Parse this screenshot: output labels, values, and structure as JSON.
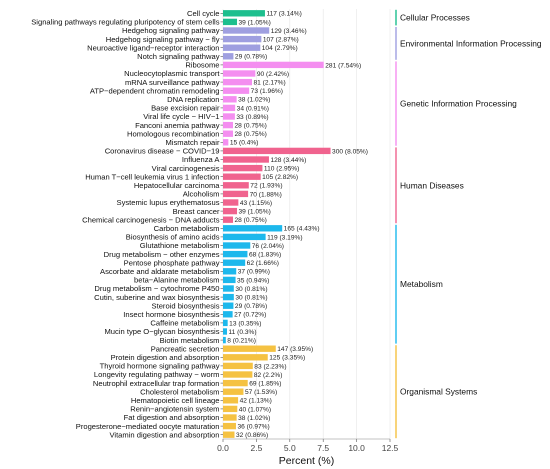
{
  "chart_data": {
    "type": "bar",
    "orientation": "horizontal",
    "xlabel": "Percent (%)",
    "xlim": [
      0,
      12.5
    ],
    "xticks": [
      "0.0",
      "2.5",
      "5.0",
      "7.5",
      "10.0",
      "12.5"
    ],
    "grid": true,
    "groups": [
      {
        "name": "Cellular Processes",
        "color": "#1dbf8e",
        "items": [
          {
            "label": "Cell cycle",
            "count": 117,
            "percent": 3.14,
            "text": "117 (3.14%)"
          },
          {
            "label": "Signaling pathways regulating pluripotency of stem cells",
            "count": 39,
            "percent": 1.05,
            "text": "39 (1.05%)"
          }
        ]
      },
      {
        "name": "Environmental Information Processing",
        "color": "#9f9fe0",
        "items": [
          {
            "label": "Hedgehog signaling pathway",
            "count": 129,
            "percent": 3.46,
            "text": "129 (3.46%)"
          },
          {
            "label": "Hedgehog signaling pathway − fly",
            "count": 107,
            "percent": 2.87,
            "text": "107 (2.87%)"
          },
          {
            "label": "Neuroactive ligand−receptor interaction",
            "count": 104,
            "percent": 2.79,
            "text": "104 (2.79%)"
          },
          {
            "label": "Notch signaling pathway",
            "count": 29,
            "percent": 0.78,
            "text": "29 (0.78%)"
          }
        ]
      },
      {
        "name": "Genetic Information Processing",
        "color": "#f48ef0",
        "items": [
          {
            "label": "Ribosome",
            "count": 281,
            "percent": 7.54,
            "text": "281 (7.54%)"
          },
          {
            "label": "Nucleocytoplasmic transport",
            "count": 90,
            "percent": 2.42,
            "text": "90 (2.42%)"
          },
          {
            "label": "mRNA surveillance pathway",
            "count": 81,
            "percent": 2.17,
            "text": "81 (2.17%)"
          },
          {
            "label": "ATP−dependent chromatin remodeling",
            "count": 73,
            "percent": 1.96,
            "text": "73 (1.96%)"
          },
          {
            "label": "DNA replication",
            "count": 38,
            "percent": 1.02,
            "text": "38 (1.02%)"
          },
          {
            "label": "Base excision repair",
            "count": 34,
            "percent": 0.91,
            "text": "34 (0.91%)"
          },
          {
            "label": "Viral life cycle − HIV−1",
            "count": 33,
            "percent": 0.89,
            "text": "33 (0.89%)"
          },
          {
            "label": "Fanconi anemia pathway",
            "count": 28,
            "percent": 0.75,
            "text": "28 (0.75%)"
          },
          {
            "label": "Homologous recombination",
            "count": 28,
            "percent": 0.75,
            "text": "28 (0.75%)"
          },
          {
            "label": "Mismatch repair",
            "count": 15,
            "percent": 0.4,
            "text": "15 (0.4%)"
          }
        ]
      },
      {
        "name": "Human Diseases",
        "color": "#f0638e",
        "items": [
          {
            "label": "Coronavirus disease − COVID−19",
            "count": 300,
            "percent": 8.05,
            "text": "300 (8.05%)"
          },
          {
            "label": "Influenza A",
            "count": 128,
            "percent": 3.44,
            "text": "128 (3.44%)"
          },
          {
            "label": "Viral carcinogenesis",
            "count": 110,
            "percent": 2.95,
            "text": "110 (2.95%)"
          },
          {
            "label": "Human T−cell leukemia virus 1 infection",
            "count": 105,
            "percent": 2.82,
            "text": "105 (2.82%)"
          },
          {
            "label": "Hepatocellular carcinoma",
            "count": 72,
            "percent": 1.93,
            "text": "72 (1.93%)"
          },
          {
            "label": "Alcoholism",
            "count": 70,
            "percent": 1.88,
            "text": "70 (1.88%)"
          },
          {
            "label": "Systemic lupus erythematosus",
            "count": 43,
            "percent": 1.15,
            "text": "43 (1.15%)"
          },
          {
            "label": "Breast cancer",
            "count": 39,
            "percent": 1.05,
            "text": "39 (1.05%)"
          },
          {
            "label": "Chemical carcinogenesis − DNA adducts",
            "count": 28,
            "percent": 0.75,
            "text": "28 (0.75%)"
          }
        ]
      },
      {
        "name": "Metabolism",
        "color": "#1db8ec",
        "items": [
          {
            "label": "Carbon metabolism",
            "count": 165,
            "percent": 4.43,
            "text": "165 (4.43%)"
          },
          {
            "label": "Biosynthesis of amino acids",
            "count": 119,
            "percent": 3.19,
            "text": "119 (3.19%)"
          },
          {
            "label": "Glutathione metabolism",
            "count": 76,
            "percent": 2.04,
            "text": "76 (2.04%)"
          },
          {
            "label": "Drug metabolism − other enzymes",
            "count": 68,
            "percent": 1.83,
            "text": "68 (1.83%)"
          },
          {
            "label": "Pentose phosphate pathway",
            "count": 62,
            "percent": 1.66,
            "text": "62 (1.66%)"
          },
          {
            "label": "Ascorbate and aldarate metabolism",
            "count": 37,
            "percent": 0.99,
            "text": "37 (0.99%)"
          },
          {
            "label": "beta−Alanine metabolism",
            "count": 35,
            "percent": 0.94,
            "text": "35 (0.94%)"
          },
          {
            "label": "Drug metabolism − cytochrome P450",
            "count": 30,
            "percent": 0.81,
            "text": "30 (0.81%)"
          },
          {
            "label": "Cutin, suberine and wax biosynthesis",
            "count": 30,
            "percent": 0.81,
            "text": "30 (0.81%)"
          },
          {
            "label": "Steroid biosynthesis",
            "count": 29,
            "percent": 0.78,
            "text": "29 (0.78%)"
          },
          {
            "label": "Insect hormone biosynthesis",
            "count": 27,
            "percent": 0.72,
            "text": "27 (0.72%)"
          },
          {
            "label": "Caffeine metabolism",
            "count": 13,
            "percent": 0.35,
            "text": "13 (0.35%)"
          },
          {
            "label": "Mucin type O−glycan biosynthesis",
            "count": 11,
            "percent": 0.3,
            "text": "11 (0.3%)"
          },
          {
            "label": "Biotin metabolism",
            "count": 8,
            "percent": 0.21,
            "text": "8 (0.21%)"
          }
        ]
      },
      {
        "name": "Organismal Systems",
        "color": "#f5c242",
        "items": [
          {
            "label": "Pancreatic secretion",
            "count": 147,
            "percent": 3.95,
            "text": "147 (3.95%)"
          },
          {
            "label": "Protein digestion and absorption",
            "count": 125,
            "percent": 3.35,
            "text": "125 (3.35%)"
          },
          {
            "label": "Thyroid hormone signaling pathway",
            "count": 83,
            "percent": 2.23,
            "text": "83 (2.23%)"
          },
          {
            "label": "Longevity regulating pathway − worm",
            "count": 82,
            "percent": 2.2,
            "text": "82 (2.2%)"
          },
          {
            "label": "Neutrophil extracellular trap formation",
            "count": 69,
            "percent": 1.85,
            "text": "69 (1.85%)"
          },
          {
            "label": "Cholesterol metabolism",
            "count": 57,
            "percent": 1.53,
            "text": "57 (1.53%)"
          },
          {
            "label": "Hematopoietic cell lineage",
            "count": 42,
            "percent": 1.13,
            "text": "42 (1.13%)"
          },
          {
            "label": "Renin−angiotensin system",
            "count": 40,
            "percent": 1.07,
            "text": "40 (1.07%)"
          },
          {
            "label": "Fat digestion and absorption",
            "count": 38,
            "percent": 1.02,
            "text": "38 (1.02%)"
          },
          {
            "label": "Progesterone−mediated oocyte maturation",
            "count": 36,
            "percent": 0.97,
            "text": "36 (0.97%)"
          },
          {
            "label": "Vitamin digestion and absorption",
            "count": 32,
            "percent": 0.86,
            "text": "32 (0.86%)"
          }
        ]
      }
    ]
  }
}
